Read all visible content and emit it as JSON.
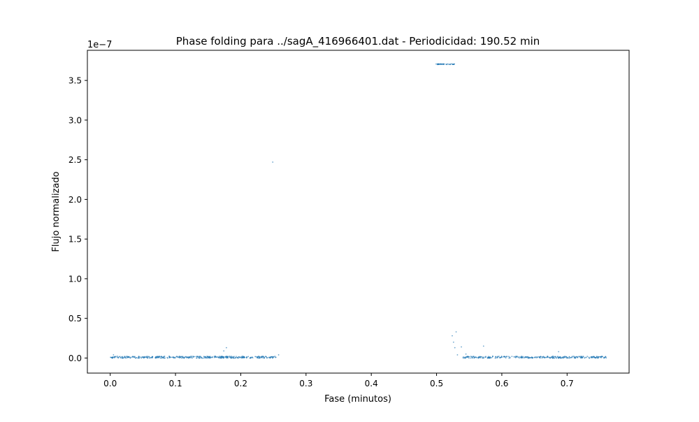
{
  "chart_data": {
    "type": "scatter",
    "title": "Phase folding para ../sagA_416966401.dat - Periodicidad: 190.52 min",
    "xlabel": "Fase (minutos)",
    "ylabel": "Flujo normalizado",
    "y_offset_text": "1e−7",
    "xlim": [
      -0.035,
      0.795
    ],
    "ylim": [
      -0.19,
      3.88
    ],
    "x_ticks": [
      0.0,
      0.1,
      0.2,
      0.3,
      0.4,
      0.5,
      0.6,
      0.7
    ],
    "x_tick_labels": [
      "0.0",
      "0.1",
      "0.2",
      "0.3",
      "0.4",
      "0.5",
      "0.6",
      "0.7"
    ],
    "y_ticks": [
      0.0,
      0.5,
      1.0,
      1.5,
      2.0,
      2.5,
      3.0,
      3.5
    ],
    "y_tick_labels": [
      "0.0",
      "0.5",
      "1.0",
      "1.5",
      "2.0",
      "2.5",
      "3.0",
      "3.5"
    ],
    "y_scale_factor": 1e-07,
    "grid": false,
    "marker_color": "#1f77b4",
    "clusters": [
      {
        "x_start": 0.0,
        "x_end": 0.255,
        "y_center": 0.01,
        "y_jitter": 0.012,
        "count": 420
      },
      {
        "x_start": 0.54,
        "x_end": 0.76,
        "y_center": 0.01,
        "y_jitter": 0.012,
        "count": 330
      },
      {
        "x_start": 0.498,
        "x_end": 0.528,
        "y_center": 3.705,
        "y_jitter": 0.004,
        "count": 45
      }
    ],
    "outliers": [
      {
        "x": 0.249,
        "y": 2.47
      },
      {
        "x": 0.178,
        "y": 0.13
      },
      {
        "x": 0.174,
        "y": 0.09
      },
      {
        "x": 0.005,
        "y": 0.04
      },
      {
        "x": 0.258,
        "y": 0.04
      },
      {
        "x": 0.53,
        "y": 0.33
      },
      {
        "x": 0.524,
        "y": 0.28
      },
      {
        "x": 0.526,
        "y": 0.2
      },
      {
        "x": 0.528,
        "y": 0.13
      },
      {
        "x": 0.538,
        "y": 0.14
      },
      {
        "x": 0.572,
        "y": 0.15
      },
      {
        "x": 0.687,
        "y": 0.08
      },
      {
        "x": 0.532,
        "y": 0.04
      },
      {
        "x": 0.545,
        "y": 0.05
      }
    ]
  }
}
